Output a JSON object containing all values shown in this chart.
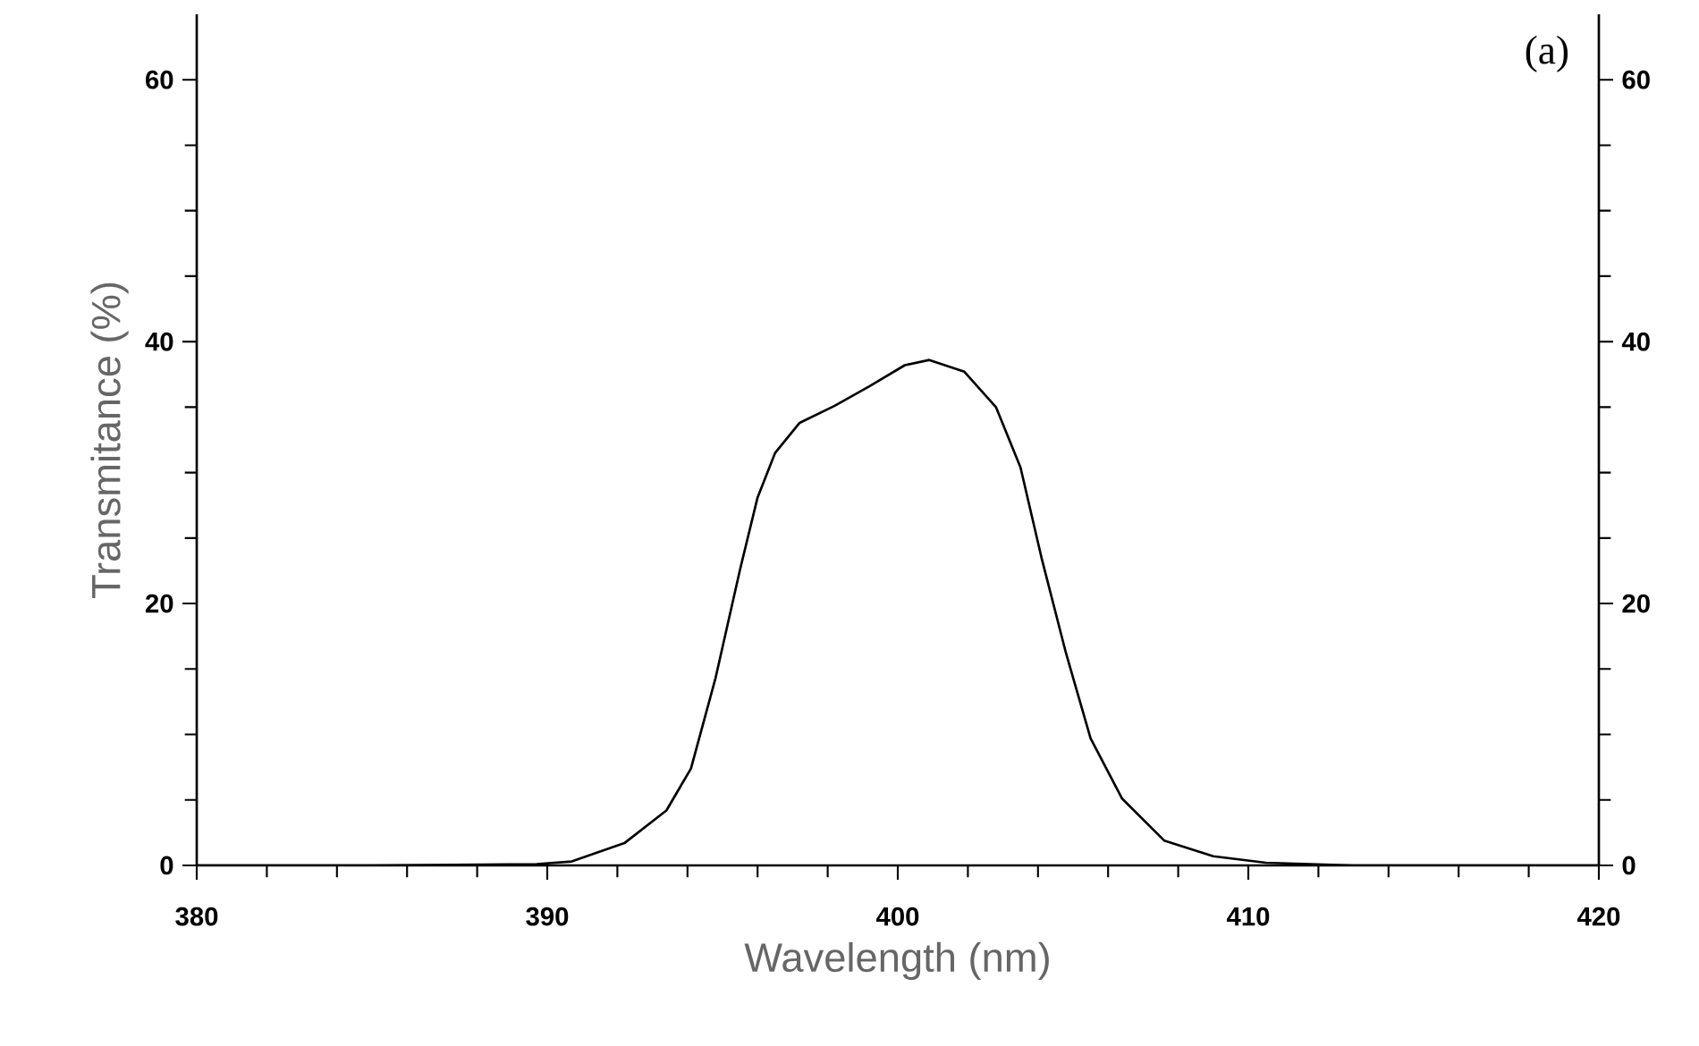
{
  "chart_data": {
    "type": "line",
    "xlabel": "Wavelength (nm)",
    "ylabel": "Transmitance (%)",
    "annotations": [
      "(a)"
    ],
    "series": [
      {
        "color": "#000000",
        "x": [
          380,
          385,
          389.7,
          390.7,
          392.2,
          393.4,
          394.1,
          394.8,
          395.5,
          396.0,
          396.5,
          397.2,
          398.2,
          399.2,
          400.2,
          400.9,
          401.9,
          402.8,
          403.5,
          404.1,
          404.8,
          405.5,
          406.4,
          407.6,
          409,
          410.5,
          413,
          420
        ],
        "values": [
          0,
          0,
          0.1,
          0.3,
          1.7,
          4.2,
          7.4,
          14.3,
          22.6,
          28.1,
          31.5,
          33.8,
          35.1,
          36.6,
          38.2,
          38.6,
          37.7,
          35.0,
          30.4,
          23.5,
          16.2,
          9.7,
          5.1,
          1.9,
          0.7,
          0.2,
          0,
          0
        ]
      }
    ],
    "xlim": [
      380,
      420
    ],
    "ylim": [
      0,
      65
    ],
    "xticks": [
      380,
      390,
      400,
      410,
      420
    ],
    "yticks": [
      0,
      20,
      40,
      60
    ],
    "y2lim": [
      0,
      65
    ],
    "y2ticks": [
      0,
      20,
      40,
      60
    ],
    "marker": "none",
    "line_style": "solid"
  }
}
